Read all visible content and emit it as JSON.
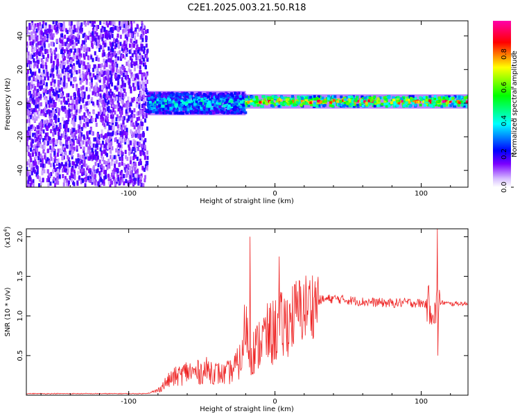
{
  "chart_data": [
    {
      "type": "heatmap",
      "title": "C2E1.2025.003.21.50.R18",
      "xlabel": "Height of straight line (km)",
      "ylabel": "Frequency (Hz)",
      "xlim": [
        -170,
        132
      ],
      "ylim": [
        -50,
        49
      ],
      "xticks": [
        -100,
        0,
        100
      ],
      "xtick_labels": [
        "-100",
        "0",
        "100"
      ],
      "yticks": [
        -40,
        -20,
        0,
        20,
        40
      ],
      "ytick_labels": [
        "-40",
        "-20",
        "0",
        "20",
        "40"
      ],
      "colorbar": {
        "label": "Normalized spectral amplitude",
        "range": [
          0,
          1
        ],
        "ticks": [
          0.0,
          0.2,
          0.4,
          0.6,
          0.8
        ],
        "tick_labels": [
          "0.0",
          "0.2",
          "0.4",
          "0.6",
          "0.8"
        ],
        "colormap": [
          "#ffffff",
          "#7b00ff",
          "#0000ff",
          "#00ffff",
          "#00ff00",
          "#ffff00",
          "#ff0000",
          "#ff00aa"
        ]
      },
      "regions": [
        {
          "x_range": [
            -170,
            -87
          ],
          "freq_center": 0,
          "freq_halfwidth": 49,
          "amplitude": [
            0.05,
            0.2
          ],
          "description": "broadband noise"
        },
        {
          "x_range": [
            -87,
            -20
          ],
          "freq_center": 0,
          "freq_halfwidth": 6,
          "amplitude": [
            0.2,
            0.5
          ]
        },
        {
          "x_range": [
            -20,
            132
          ],
          "freq_center": 1,
          "freq_halfwidth": 3,
          "amplitude": [
            0.4,
            1.0
          ]
        }
      ]
    },
    {
      "type": "line",
      "xlabel": "Height of straight line (km)",
      "ylabel": "SNR (10 * v/v)",
      "y_multiplier": "(x10",
      "y_multiplier_exp": "4",
      "xlim": [
        -170,
        132
      ],
      "ylim": [
        0,
        2.1
      ],
      "xticks": [
        -100,
        0,
        100
      ],
      "xtick_labels": [
        "-100",
        "0",
        "100"
      ],
      "yticks": [
        0.5,
        1.0,
        1.5,
        2.0
      ],
      "ytick_labels": [
        "0.5",
        "1.0",
        "1.5",
        "2.0"
      ],
      "line_color": "#ee2222",
      "series": [
        {
          "name": "SNR",
          "x": [
            -170,
            -140,
            -110,
            -90,
            -85,
            -80,
            -75,
            -70,
            -65,
            -60,
            -55,
            -50,
            -45,
            -40,
            -35,
            -30,
            -25,
            -22,
            -20,
            -18,
            -15,
            -12,
            -10,
            -5,
            0,
            2,
            5,
            7,
            10,
            15,
            20,
            25,
            30,
            40,
            50,
            60,
            70,
            80,
            90,
            100,
            105,
            108,
            110,
            111,
            112,
            115,
            120,
            125,
            132
          ],
          "y": [
            0.02,
            0.02,
            0.02,
            0.02,
            0.03,
            0.06,
            0.15,
            0.22,
            0.25,
            0.3,
            0.28,
            0.3,
            0.32,
            0.28,
            0.26,
            0.3,
            0.4,
            0.5,
            1.0,
            0.55,
            0.55,
            0.6,
            0.7,
            0.75,
            0.8,
            0.9,
            0.85,
            0.9,
            0.95,
            1.05,
            1.1,
            1.15,
            1.2,
            1.22,
            1.2,
            1.18,
            1.17,
            1.16,
            1.17,
            1.16,
            1.15,
            1.1,
            1.0,
            1.2,
            1.15,
            1.17,
            1.15,
            1.16,
            1.15
          ]
        }
      ],
      "peaks": [
        {
          "x": -17,
          "y": 2.0
        },
        {
          "x": 3,
          "y": 1.75
        },
        {
          "x": 111,
          "y": 2.1
        },
        {
          "x": 111.5,
          "y": 0.5
        }
      ]
    }
  ]
}
